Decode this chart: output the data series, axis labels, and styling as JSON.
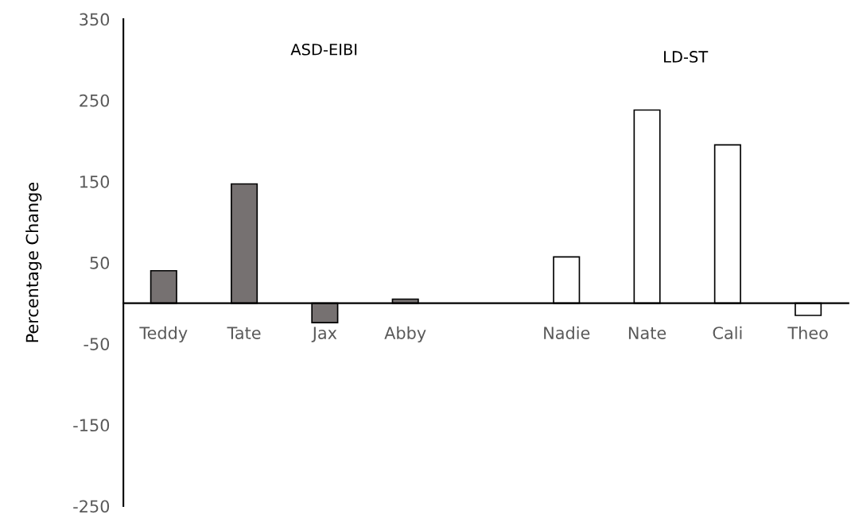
{
  "chart_data": {
    "type": "bar",
    "ylabel": "Percentage Change",
    "categories": [
      "Teddy",
      "Tate",
      "Jax",
      "Abby",
      null,
      "Nadie",
      "Nate",
      "Cali",
      "Theo"
    ],
    "values": [
      40,
      147,
      -24,
      5,
      null,
      57,
      238,
      195,
      -15
    ],
    "colors": [
      "#767171",
      "#767171",
      "#767171",
      "#767171",
      null,
      "#ffffff",
      "#ffffff",
      "#ffffff",
      "#ffffff"
    ],
    "ylim": [
      -250,
      350
    ],
    "yticks": [
      -250,
      -150,
      -50,
      50,
      150,
      250,
      350
    ],
    "annotations": [
      "ASD-EIBI",
      "LD-ST"
    ],
    "grid": false,
    "legend": false
  }
}
